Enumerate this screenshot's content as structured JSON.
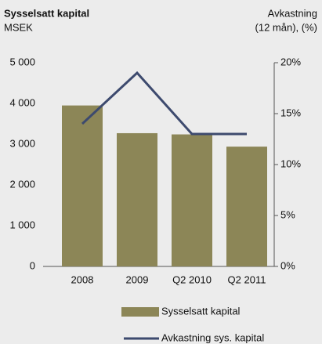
{
  "chart_data": {
    "type": "bar-line",
    "y_label": "Sysselsatt kapital",
    "y_unit": "MSEK",
    "y2_label": "Avkastning",
    "y2_unit": "(12 mån), (%)",
    "categories": [
      "2008",
      "2009",
      "Q2 2010",
      "Q2 2011"
    ],
    "series": [
      {
        "name": "Sysselsatt kapital",
        "kind": "bar",
        "color": "#8c8657",
        "values": [
          3950,
          3270,
          3240,
          2940
        ]
      },
      {
        "name": "Avkastning sys. kapital",
        "kind": "line",
        "axis": "y2",
        "color": "#3d4a6e",
        "values": [
          14,
          19,
          13,
          13
        ]
      }
    ],
    "ylim": [
      0,
      5000
    ],
    "yticks": [
      0,
      {
        "value": 1000,
        "label": "1 000"
      },
      {
        "value": 2000,
        "label": "2 000"
      },
      {
        "value": 3000,
        "label": "3 000"
      },
      {
        "value": 4000,
        "label": "4 000"
      },
      {
        "value": 5000,
        "label": "5 000"
      }
    ],
    "y2lim": [
      0,
      20
    ],
    "y2ticks": [
      {
        "value": 0,
        "label": "0%"
      },
      {
        "value": 5,
        "label": "5%"
      },
      {
        "value": 10,
        "label": "10%"
      },
      {
        "value": 15,
        "label": "15%"
      },
      {
        "value": 20,
        "label": "20%"
      }
    ]
  }
}
